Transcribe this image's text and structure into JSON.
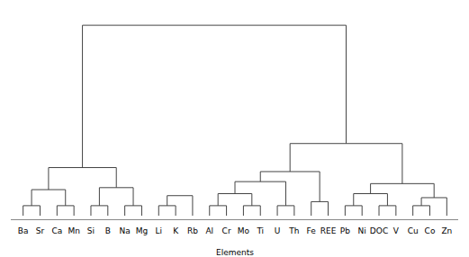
{
  "chart_data": {
    "type": "dendrogram",
    "xlabel": "Elements",
    "categories": [
      "Ba",
      "Sr",
      "Ca",
      "Mn",
      "Si",
      "B",
      "Na",
      "Mg",
      "Li",
      "K",
      "Rb",
      "Al",
      "Cr",
      "Mo",
      "Ti",
      "U",
      "Th",
      "Fe",
      "REE",
      "Pb",
      "Ni",
      "DOC",
      "V",
      "Cu",
      "Co",
      "Zn"
    ],
    "merges": [
      {
        "left": 0,
        "right": 1,
        "height": 0.05,
        "id": 26
      },
      {
        "left": 2,
        "right": 3,
        "height": 0.05,
        "id": 27
      },
      {
        "left": 26,
        "right": 27,
        "height": 0.13,
        "id": 28
      },
      {
        "left": 4,
        "right": 5,
        "height": 0.05,
        "id": 29
      },
      {
        "left": 6,
        "right": 7,
        "height": 0.05,
        "id": 30
      },
      {
        "left": 29,
        "right": 30,
        "height": 0.14,
        "id": 31
      },
      {
        "left": 28,
        "right": 31,
        "height": 0.24,
        "id": 32
      },
      {
        "left": 8,
        "right": 9,
        "height": 0.05,
        "id": 33
      },
      {
        "left": 33,
        "right": 10,
        "height": 0.1,
        "id": 34
      },
      {
        "left": 11,
        "right": 12,
        "height": 0.05,
        "id": 35
      },
      {
        "left": 13,
        "right": 14,
        "height": 0.05,
        "id": 36
      },
      {
        "left": 15,
        "right": 16,
        "height": 0.05,
        "id": 37
      },
      {
        "left": 35,
        "right": 36,
        "height": 0.11,
        "id": 38
      },
      {
        "left": 38,
        "right": 37,
        "height": 0.17,
        "id": 39
      },
      {
        "left": 17,
        "right": 18,
        "height": 0.07,
        "id": 40
      },
      {
        "left": 39,
        "right": 40,
        "height": 0.22,
        "id": 41
      },
      {
        "left": 19,
        "right": 20,
        "height": 0.05,
        "id": 42
      },
      {
        "left": 21,
        "right": 22,
        "height": 0.05,
        "id": 43
      },
      {
        "left": 42,
        "right": 43,
        "height": 0.11,
        "id": 44
      },
      {
        "left": 23,
        "right": 24,
        "height": 0.05,
        "id": 45
      },
      {
        "left": 45,
        "right": 25,
        "height": 0.09,
        "id": 46
      },
      {
        "left": 44,
        "right": 46,
        "height": 0.16,
        "id": 47
      },
      {
        "left": 41,
        "right": 47,
        "height": 0.36,
        "id": 48
      },
      {
        "left": 32,
        "right": 48,
        "height": 0.95,
        "id": 49
      }
    ],
    "ylim": [
      -0.02,
      1.02
    ],
    "tick_labels": "x",
    "color": "#444444"
  }
}
